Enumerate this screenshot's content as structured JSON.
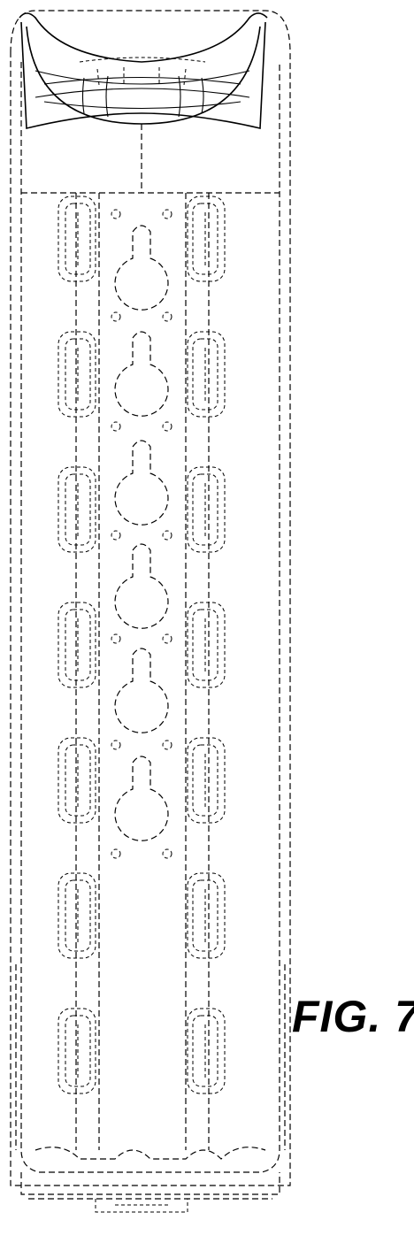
{
  "figure": {
    "label": "FIG. 7"
  }
}
